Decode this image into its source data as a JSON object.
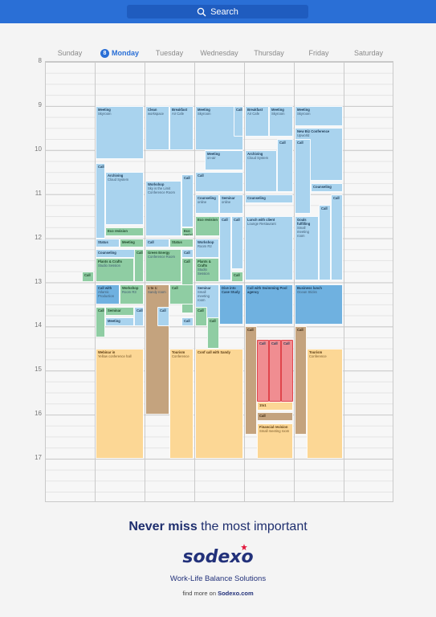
{
  "search": {
    "label": "Search",
    "icon": "search-icon"
  },
  "calendar": {
    "days": [
      "Sunday",
      "Monday",
      "Tuesday",
      "Wednesday",
      "Thursday",
      "Friday",
      "Saturday"
    ],
    "today_number": "8",
    "hours": [
      "8",
      "9",
      "10",
      "11",
      "12",
      "13",
      "14",
      "15",
      "16",
      "17"
    ],
    "events": [
      {
        "day": 1,
        "start": 9.0,
        "end": 10.2,
        "col": 0,
        "cols": 1,
        "title": "Meeting",
        "sub": "Skyroom",
        "color": "blue"
      },
      {
        "day": 1,
        "start": 10.3,
        "end": 12.0,
        "col": 0,
        "cols": 5,
        "title": "Call",
        "sub": "",
        "color": "blue"
      },
      {
        "day": 1,
        "start": 10.5,
        "end": 11.7,
        "col": 1,
        "cols": 5,
        "span": 4,
        "title": "Archiving",
        "sub": "Cloud System",
        "color": "blue"
      },
      {
        "day": 1,
        "start": 11.75,
        "end": 11.95,
        "col": 1,
        "cols": 5,
        "span": 4,
        "title": "Eco revision",
        "sub": "",
        "color": "green"
      },
      {
        "day": 1,
        "start": 12.0,
        "end": 12.2,
        "col": 0,
        "cols": 2,
        "title": "Status",
        "sub": "",
        "color": "blue"
      },
      {
        "day": 1,
        "start": 12.0,
        "end": 12.2,
        "col": 1,
        "cols": 2,
        "title": "Meeting",
        "sub": "",
        "color": "green"
      },
      {
        "day": 1,
        "start": 12.25,
        "end": 12.45,
        "col": 0,
        "cols": 1,
        "span": 1,
        "title": "Counseling",
        "sub": "",
        "color": "blue"
      },
      {
        "day": 1,
        "start": 12.45,
        "end": 13.0,
        "col": 0,
        "cols": 5,
        "span": 4,
        "title": "Plants & Crafts",
        "sub": "Studio Session",
        "color": "green"
      },
      {
        "day": 1,
        "start": 12.25,
        "end": 13.0,
        "col": 4,
        "cols": 5,
        "title": "Call",
        "sub": "",
        "color": "green"
      },
      {
        "day": 1,
        "start": 13.05,
        "end": 13.5,
        "col": 0,
        "cols": 2,
        "title": "Call with",
        "sub": "Atlantic Production",
        "color": "bluedark"
      },
      {
        "day": 1,
        "start": 13.05,
        "end": 13.5,
        "col": 1,
        "cols": 2,
        "title": "Workshop",
        "sub": "Room R3",
        "color": "green"
      },
      {
        "day": 1,
        "start": 13.55,
        "end": 14.25,
        "col": 0,
        "cols": 5,
        "title": "Call",
        "sub": "",
        "color": "green"
      },
      {
        "day": 1,
        "start": 13.55,
        "end": 13.75,
        "col": 1,
        "cols": 5,
        "span": 3,
        "title": "Seminar",
        "sub": "",
        "color": "green"
      },
      {
        "day": 1,
        "start": 13.8,
        "end": 14.0,
        "col": 1,
        "cols": 5,
        "span": 3,
        "title": "Meeting",
        "sub": "",
        "color": "blue"
      },
      {
        "day": 1,
        "start": 13.55,
        "end": 14.0,
        "col": 4,
        "cols": 5,
        "title": "Call",
        "sub": "",
        "color": "blue"
      },
      {
        "day": 1,
        "start": 14.5,
        "end": 17.0,
        "col": 0,
        "cols": 1,
        "title": "Webinar in",
        "sub": "Yellow conference hall",
        "color": "orange"
      },
      {
        "day": 2,
        "start": 9.0,
        "end": 10.0,
        "col": 0,
        "cols": 2,
        "title": "Clean",
        "sub": "workspace",
        "color": "blue"
      },
      {
        "day": 2,
        "start": 9.0,
        "end": 10.0,
        "col": 1,
        "cols": 2,
        "title": "Breakfast",
        "sub": "Air Cafe",
        "color": "blue"
      },
      {
        "day": 2,
        "start": 10.7,
        "end": 11.95,
        "col": 0,
        "cols": 4,
        "span": 3,
        "title": "Workshop",
        "sub": "Sky is the Limit Conference Room",
        "color": "blue"
      },
      {
        "day": 2,
        "start": 10.55,
        "end": 11.75,
        "col": 3,
        "cols": 4,
        "title": "Call",
        "sub": "",
        "color": "blue"
      },
      {
        "day": 2,
        "start": 11.75,
        "end": 11.95,
        "col": 3,
        "cols": 4,
        "span": 1,
        "title": "Eco revision",
        "sub": "",
        "color": "green"
      },
      {
        "day": 2,
        "start": 12.0,
        "end": 12.2,
        "col": 0,
        "cols": 2,
        "title": "Call",
        "sub": "",
        "color": "blue"
      },
      {
        "day": 2,
        "start": 12.0,
        "end": 12.2,
        "col": 1,
        "cols": 2,
        "title": "Status",
        "sub": "",
        "color": "green"
      },
      {
        "day": 2,
        "start": 12.25,
        "end": 13.0,
        "col": 0,
        "cols": 4,
        "span": 3,
        "title": "Green Energy",
        "sub": "Conference Room",
        "color": "green"
      },
      {
        "day": 2,
        "start": 12.25,
        "end": 12.45,
        "col": 3,
        "cols": 4,
        "title": "Call",
        "sub": "",
        "color": "blue"
      },
      {
        "day": 2,
        "start": 12.45,
        "end": 13.7,
        "col": 3,
        "cols": 4,
        "title": "Call",
        "sub": "",
        "color": "green"
      },
      {
        "day": 2,
        "start": 13.05,
        "end": 16.0,
        "col": 0,
        "cols": 2,
        "title": "1 to 1:",
        "sub": "Sandy room",
        "color": "brown"
      },
      {
        "day": 2,
        "start": 13.05,
        "end": 13.5,
        "col": 1,
        "cols": 2,
        "title": "Call",
        "sub": "",
        "color": "green"
      },
      {
        "day": 2,
        "start": 13.55,
        "end": 14.0,
        "col": 1,
        "cols": 4,
        "title": "Call",
        "sub": "",
        "color": "blue"
      },
      {
        "day": 2,
        "start": 13.8,
        "end": 14.0,
        "col": 3,
        "cols": 4,
        "title": "Call",
        "sub": "",
        "color": "blue"
      },
      {
        "day": 2,
        "start": 14.5,
        "end": 17.0,
        "col": 1,
        "cols": 2,
        "title": "Tourism",
        "sub": "Conference",
        "color": "orange"
      },
      {
        "day": 3,
        "start": 9.0,
        "end": 10.0,
        "col": 0,
        "cols": 1,
        "span": 1,
        "title": "Meeting",
        "sub": "Skyroom",
        "color": "blue"
      },
      {
        "day": 3,
        "start": 9.0,
        "end": 9.7,
        "col": 4,
        "cols": 5,
        "title": "Call",
        "sub": "",
        "color": "blue"
      },
      {
        "day": 3,
        "start": 10.0,
        "end": 10.45,
        "col": 1,
        "cols": 5,
        "span": 4,
        "title": "Meeting",
        "sub": "on-air",
        "color": "blue"
      },
      {
        "day": 3,
        "start": 10.5,
        "end": 10.95,
        "col": 0,
        "cols": 1,
        "title": "Call",
        "sub": "",
        "color": "blue"
      },
      {
        "day": 3,
        "start": 11.0,
        "end": 11.45,
        "col": 0,
        "cols": 2,
        "title": "Counseling",
        "sub": "online",
        "color": "blue"
      },
      {
        "day": 3,
        "start": 11.0,
        "end": 11.45,
        "col": 1,
        "cols": 2,
        "title": "Seminar",
        "sub": "online",
        "color": "blue"
      },
      {
        "day": 3,
        "start": 11.5,
        "end": 11.95,
        "col": 0,
        "cols": 1,
        "title": "Eco revision",
        "sub": "",
        "color": "green"
      },
      {
        "day": 3,
        "start": 11.5,
        "end": 12.95,
        "col": 2,
        "cols": 4,
        "title": "Call",
        "sub": "",
        "color": "blue"
      },
      {
        "day": 3,
        "start": 11.5,
        "end": 12.7,
        "col": 3,
        "cols": 4,
        "title": "Call",
        "sub": "",
        "color": "blue"
      },
      {
        "day": 3,
        "start": 12.0,
        "end": 12.45,
        "col": 0,
        "cols": 2,
        "title": "Workshop",
        "sub": "Room R2",
        "color": "blue"
      },
      {
        "day": 3,
        "start": 12.45,
        "end": 13.0,
        "col": 0,
        "cols": 2,
        "title": "Plants & Crafts",
        "sub": "Studio Session",
        "color": "green"
      },
      {
        "day": 3,
        "start": 12.75,
        "end": 13.0,
        "col": 3,
        "cols": 4,
        "title": "Call",
        "sub": "",
        "color": "green"
      },
      {
        "day": 3,
        "start": 13.05,
        "end": 13.95,
        "col": 0,
        "cols": 2,
        "title": "Seminar",
        "sub": "Small meeting room",
        "color": "blue"
      },
      {
        "day": 3,
        "start": 13.05,
        "end": 13.95,
        "col": 1,
        "cols": 2,
        "title": "Dive into Case Study",
        "sub": "",
        "color": "bluedark"
      },
      {
        "day": 3,
        "start": 13.55,
        "end": 14.0,
        "col": 0,
        "cols": 4,
        "title": "Call",
        "sub": "",
        "color": "green"
      },
      {
        "day": 3,
        "start": 13.8,
        "end": 14.5,
        "col": 1,
        "cols": 4,
        "title": "Call",
        "sub": "",
        "color": "green"
      },
      {
        "day": 3,
        "start": 14.5,
        "end": 17.0,
        "col": 0,
        "cols": 1,
        "title": "Conf call with Sandy",
        "sub": "",
        "color": "orange"
      },
      {
        "day": 4,
        "start": 9.0,
        "end": 9.7,
        "col": 0,
        "cols": 2,
        "title": "Breakfast",
        "sub": "Air Cafe",
        "color": "blue"
      },
      {
        "day": 4,
        "start": 9.0,
        "end": 9.7,
        "col": 1,
        "cols": 2,
        "title": "Meeting",
        "sub": "Skyroom",
        "color": "blue"
      },
      {
        "day": 4,
        "start": 10.0,
        "end": 10.95,
        "col": 0,
        "cols": 3,
        "span": 2,
        "title": "Archiving",
        "sub": "Cloud System",
        "color": "blue"
      },
      {
        "day": 4,
        "start": 9.75,
        "end": 10.95,
        "col": 2,
        "cols": 3,
        "title": "Call",
        "sub": "",
        "color": "blue"
      },
      {
        "day": 4,
        "start": 11.0,
        "end": 11.2,
        "col": 0,
        "cols": 1,
        "span": 1,
        "title": "Counseling",
        "sub": "",
        "color": "blue"
      },
      {
        "day": 4,
        "start": 11.5,
        "end": 12.95,
        "col": 0,
        "cols": 1,
        "title": "Lunch with client",
        "sub": "Lounge Restaurant",
        "color": "blue"
      },
      {
        "day": 4,
        "start": 13.05,
        "end": 13.95,
        "col": 0,
        "cols": 1,
        "title": "Call with Swimming Pool agency",
        "sub": "",
        "color": "bluedark"
      },
      {
        "day": 4,
        "start": 14.0,
        "end": 16.45,
        "col": 0,
        "cols": 4,
        "title": "Call",
        "sub": "",
        "color": "brown"
      },
      {
        "day": 4,
        "start": 14.3,
        "end": 15.7,
        "col": 1,
        "cols": 4,
        "title": "Call",
        "sub": "",
        "color": "red"
      },
      {
        "day": 4,
        "start": 14.3,
        "end": 15.7,
        "col": 2,
        "cols": 4,
        "title": "Call",
        "sub": "",
        "color": "red"
      },
      {
        "day": 4,
        "start": 14.3,
        "end": 15.7,
        "col": 3,
        "cols": 4,
        "title": "Call",
        "sub": "",
        "color": "red"
      },
      {
        "day": 4,
        "start": 15.7,
        "end": 15.9,
        "col": 1,
        "cols": 4,
        "span": 3,
        "title": "1to1",
        "sub": "",
        "color": "orange"
      },
      {
        "day": 4,
        "start": 15.95,
        "end": 16.15,
        "col": 1,
        "cols": 4,
        "span": 3,
        "title": "Call",
        "sub": "",
        "color": "brown"
      },
      {
        "day": 4,
        "start": 16.2,
        "end": 17.0,
        "col": 1,
        "cols": 4,
        "span": 3,
        "title": "Financial revision",
        "sub": "Small meeting room",
        "color": "orange"
      },
      {
        "day": 5,
        "start": 9.0,
        "end": 9.45,
        "col": 0,
        "cols": 1,
        "title": "Meeting",
        "sub": "Skyroom",
        "color": "blue"
      },
      {
        "day": 5,
        "start": 9.5,
        "end": 10.7,
        "col": 0,
        "cols": 1,
        "title": "New Biz Conference",
        "sub": "Upworld",
        "color": "blue"
      },
      {
        "day": 5,
        "start": 9.75,
        "end": 11.45,
        "col": 0,
        "cols": 3,
        "title": "Call",
        "sub": "",
        "color": "blue"
      },
      {
        "day": 5,
        "start": 10.75,
        "end": 10.95,
        "col": 1,
        "cols": 3,
        "span": 2,
        "title": "Counseling",
        "sub": "",
        "color": "blue"
      },
      {
        "day": 5,
        "start": 11.5,
        "end": 12.95,
        "col": 0,
        "cols": 4,
        "span": 2,
        "title": "Goals fulfilling",
        "sub": "Small meeting room",
        "color": "blue"
      },
      {
        "day": 5,
        "start": 11.25,
        "end": 12.95,
        "col": 2,
        "cols": 4,
        "title": "Call",
        "sub": "",
        "color": "blue"
      },
      {
        "day": 5,
        "start": 11.0,
        "end": 12.95,
        "col": 3,
        "cols": 4,
        "title": "Call",
        "sub": "",
        "color": "blue"
      },
      {
        "day": 5,
        "start": 13.05,
        "end": 13.95,
        "col": 0,
        "cols": 1,
        "title": "Business lunch",
        "sub": "Ocean Sticks",
        "color": "bluedark"
      },
      {
        "day": 5,
        "start": 14.0,
        "end": 16.45,
        "col": 0,
        "cols": 4,
        "title": "Call",
        "sub": "",
        "color": "brown"
      },
      {
        "day": 5,
        "start": 14.5,
        "end": 17.0,
        "col": 1,
        "cols": 4,
        "span": 3,
        "title": "Tourism",
        "sub": "Conference",
        "color": "orange"
      },
      {
        "day": 0,
        "start": 12.75,
        "end": 13.0,
        "col": 3,
        "cols": 4,
        "title": "Call",
        "sub": "",
        "color": "green"
      }
    ]
  },
  "footer": {
    "tagline_bold": "Never miss",
    "tagline_rest": " the most important",
    "logo": "sodexo",
    "subline": "Work-Life Balance Solutions",
    "findmore_prefix": "find more on ",
    "findmore_link": "Sodexo.com"
  }
}
